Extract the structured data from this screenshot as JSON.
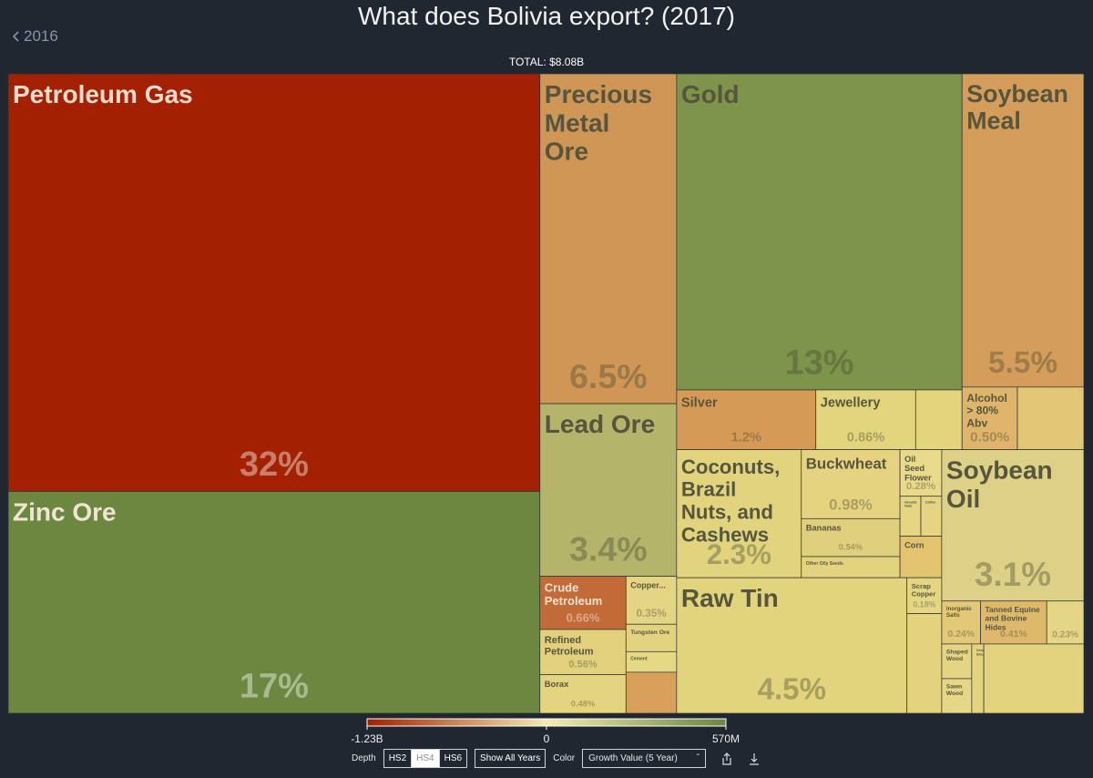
{
  "header": {
    "title": "What does Bolivia export? (2017)",
    "back_link": "2016",
    "total": "TOTAL: $8.08B"
  },
  "chart_data": {
    "type": "treemap",
    "items": [
      {
        "name": "Petroleum Gas",
        "value": 32,
        "value_label": "32%",
        "color": "#a32000"
      },
      {
        "name": "Zinc Ore",
        "value": 17,
        "value_label": "17%",
        "color": "#6b8740"
      },
      {
        "name": "Precious Metal Ore",
        "value": 6.5,
        "value_label": "6.5%",
        "color": "#cf9656"
      },
      {
        "name": "Lead Ore",
        "value": 3.4,
        "value_label": "3.4%",
        "color": "#b4b46a"
      },
      {
        "name": "Crude Petroleum",
        "value": 0.66,
        "value_label": "0.66%",
        "color": "#c36b38"
      },
      {
        "name": "Copper...",
        "value": 0.35,
        "value_label": "0.35%",
        "color": "#e4d584"
      },
      {
        "name": "Refined Petroleum",
        "value": 0.56,
        "value_label": "0.56%",
        "color": "#e2d07c"
      },
      {
        "name": "Tungsten Ore",
        "value": 0.2,
        "color": "#e3d27f"
      },
      {
        "name": "Cement",
        "value": 0.15,
        "color": "#e6d985"
      },
      {
        "name": "Borax",
        "value": 0.48,
        "value_label": "0.48%",
        "color": "#e4d37f"
      },
      {
        "name": null,
        "value": 0.3,
        "color": "#d9a05b"
      },
      {
        "name": "Gold",
        "value": 13,
        "value_label": "13%",
        "color": "#7d944a"
      },
      {
        "name": "Silver",
        "value": 1.2,
        "value_label": "1.2%",
        "color": "#d49a56"
      },
      {
        "name": "Jewellery",
        "value": 0.86,
        "value_label": "0.86%",
        "color": "#e3d57e"
      },
      {
        "name": null,
        "value": 0.4,
        "color": "#e4d47c"
      },
      {
        "name": "Soybean Meal",
        "value": 5.5,
        "value_label": "5.5%",
        "color": "#d59d5a"
      },
      {
        "name": "Alcohol > 80% Abv",
        "value": 0.5,
        "value_label": "0.50%",
        "color": "#deb56b"
      },
      {
        "name": null,
        "value": 0.6,
        "color": "#e3c777"
      },
      {
        "name": "Coconuts, Brazil Nuts, and Cashews",
        "value": 2.3,
        "value_label": "2.3%",
        "color": "#e2d47e"
      },
      {
        "name": "Buckwheat",
        "value": 0.98,
        "value_label": "0.98%",
        "color": "#e6d380"
      },
      {
        "name": "Bananas",
        "value": 0.54,
        "value_label": "0.54%",
        "color": "#e0cf7c"
      },
      {
        "name": "Other Oily Seeds",
        "value": 0.3,
        "color": "#e3d37e"
      },
      {
        "name": "Oil Seed Flower",
        "value": 0.28,
        "value_label": "0.28%",
        "color": "#e8da8a"
      },
      {
        "name": "Ground Nuts",
        "value": 0.12,
        "color": "#e6d684"
      },
      {
        "name": "Coffee",
        "value": 0.12,
        "color": "#e6d482"
      },
      {
        "name": "Corn",
        "value": 0.25,
        "color": "#e2c46f"
      },
      {
        "name": "Raw Tin",
        "value": 4.5,
        "value_label": "4.5%",
        "color": "#e2d47c"
      },
      {
        "name": "Scrap Copper",
        "value": 0.18,
        "value_label": "0.18%",
        "color": "#e5d684"
      },
      {
        "name": null,
        "value": 0.5,
        "color": "#e4d27e"
      },
      {
        "name": "Soybean Oil",
        "value": 3.1,
        "value_label": "3.1%",
        "color": "#ddd187"
      },
      {
        "name": "Inorganic Salts",
        "value": 0.24,
        "value_label": "0.24%",
        "color": "#e3c877"
      },
      {
        "name": "Tanned Equine and Bovine Hides",
        "value": 0.41,
        "value_label": "0.41%",
        "color": "#deb96c"
      },
      {
        "name": null,
        "value": 0.23,
        "value_label": "0.23%",
        "color": "#e4d684"
      },
      {
        "name": "Shaped Wood",
        "value": 0.15,
        "color": "#e5d583"
      },
      {
        "name": "Sawn Wood",
        "value": 0.15,
        "color": "#e6d786"
      },
      {
        "name": "Veneer Sheets",
        "value": 0.12,
        "color": "#e4d480"
      },
      {
        "name": null,
        "value": 1.0,
        "color": "#e3d27e"
      }
    ]
  },
  "color_scale": {
    "range": [
      -1230000000,
      570000000
    ],
    "ticks": [
      {
        "value": -1230000000,
        "label": "-1.23B"
      },
      0,
      {
        "value": 570000000,
        "label": "570M"
      }
    ],
    "colors": [
      "#a32000",
      "#f3ebb3",
      "#6b8740"
    ]
  },
  "controls": {
    "depth_label": "Depth",
    "depth_options": [
      "HS2",
      "HS4",
      "HS6"
    ],
    "selected_depth": "HS4",
    "years_button": "Show All Years",
    "color_label": "Color",
    "color_option": "Growth Value (5 Year)"
  }
}
